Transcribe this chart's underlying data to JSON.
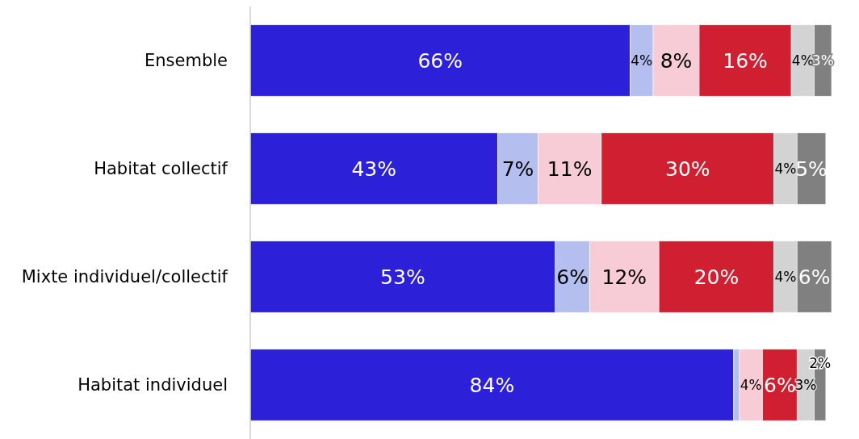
{
  "chart_data": {
    "type": "bar",
    "orientation": "horizontal",
    "stacked": true,
    "categories": [
      "Ensemble",
      "Habitat collectif",
      "Mixte individuel/collectif",
      "Habitat individuel"
    ],
    "series": [
      {
        "color": "#2c21d9",
        "values": [
          66,
          43,
          53,
          84
        ],
        "value_labels": [
          "66%",
          "43%",
          "53%",
          "84%"
        ]
      },
      {
        "color": "#b4bff0",
        "values": [
          4,
          7,
          6,
          1
        ],
        "value_labels": [
          "4%",
          "7%",
          "6%",
          null
        ]
      },
      {
        "color": "#f7ccd6",
        "values": [
          8,
          11,
          12,
          4
        ],
        "value_labels": [
          "8%",
          "11%",
          "12%",
          "4%"
        ]
      },
      {
        "color": "#d01f30",
        "values": [
          16,
          30,
          20,
          6
        ],
        "value_labels": [
          "16%",
          "30%",
          "20%",
          "6%"
        ]
      },
      {
        "color": "#d3d3d3",
        "values": [
          4,
          4,
          4,
          3
        ],
        "value_labels": [
          "4%",
          "4%",
          "4%",
          "3%"
        ]
      },
      {
        "color": "#808080",
        "values": [
          3,
          5,
          6,
          2
        ],
        "value_labels": [
          "3%",
          "5%",
          "6%",
          "2%"
        ]
      }
    ]
  }
}
